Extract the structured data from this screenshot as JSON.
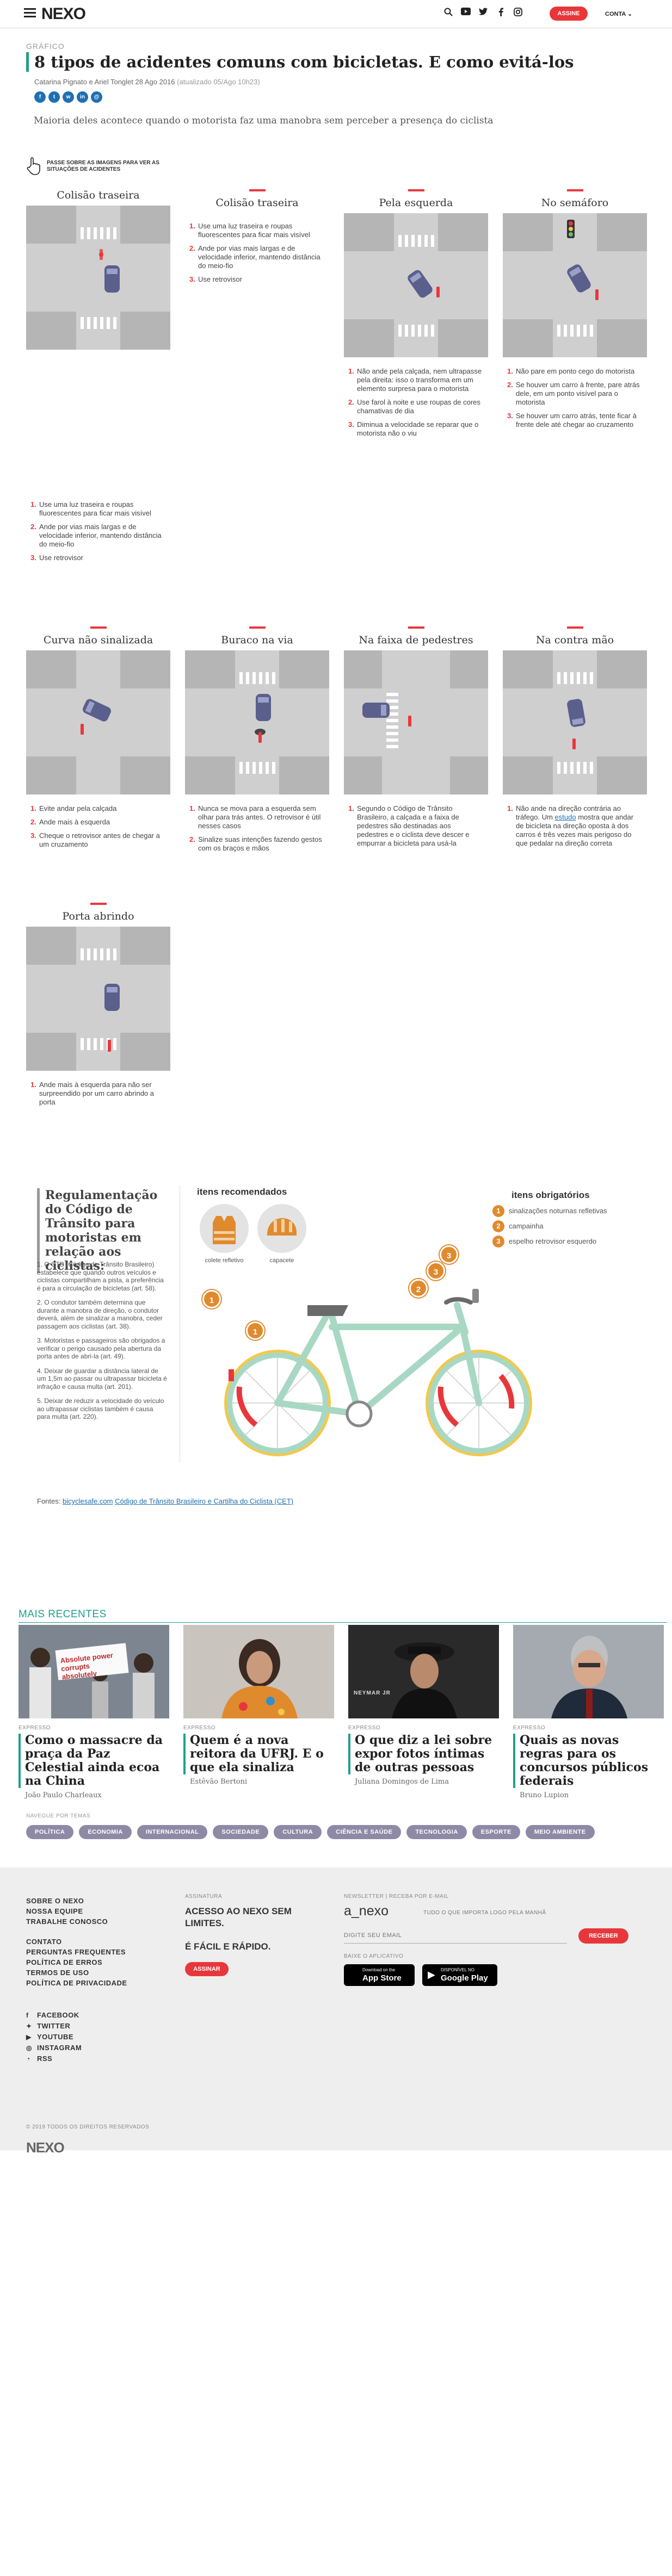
{
  "header": {
    "logo_text": "NEXO",
    "subscribe_label": "ASSINE",
    "account_label": "CONTA",
    "icons": [
      "search-icon",
      "youtube-icon",
      "twitter-icon",
      "facebook-icon",
      "instagram-icon"
    ]
  },
  "article": {
    "kicker": "GRÁFICO",
    "title": "8 tipos de acidentes comuns com bicicletas. E como evitá-los",
    "byline": "Catarina Pignato e Ariel Tonglet 28 Ago 2016",
    "updated": "(atualizado 05/Ago 10h23)",
    "subtitle": "Maioria deles acontece quando o motorista faz uma manobra sem perceber a presença do ciclista",
    "hint": "PASSE SOBRE AS IMAGENS PARA VER AS SITUAÇÕES DE ACIDENTES"
  },
  "cards": [
    {
      "title": "Colisão traseira",
      "tips": []
    },
    {
      "title": "Colisão traseira",
      "tips": [
        "Use uma luz traseira e roupas fluorescentes para ficar mais visível",
        "Ande por vias mais largas e de velocidade inferior, mantendo distância do meio-fio",
        "Use retrovisor"
      ]
    },
    {
      "title": "Pela esquerda",
      "tips": [
        "Não ande pela calçada, nem ultrapasse pela direita: isso o transforma em um elemento surpresa para o motorista",
        "Use farol à noite e use roupas de cores chamativas de dia",
        "Diminua a velocidade se reparar que o motorista não o viu"
      ]
    },
    {
      "title": "No semáforo",
      "tips": [
        "Não pare em ponto cego do motorista",
        "Se houver um carro à frente, pare atrás dele, em um ponto visível para o motorista",
        "Se houver um carro atrás, tente ficar à frente dele até chegar ao cruzamento"
      ]
    },
    {
      "title": "",
      "tips": [
        "Use uma luz traseira e roupas fluorescentes para ficar mais visível",
        "Ande por vias mais largas e de velocidade inferior, mantendo distância do meio-fio",
        "Use retrovisor"
      ]
    },
    {
      "title": "Curva não sinalizada",
      "tips": [
        "Evite andar pela calçada",
        "Ande mais à esquerda",
        "Cheque o retrovisor antes de chegar a um cruzamento"
      ]
    },
    {
      "title": "Buraco na via",
      "tips": [
        "Nunca se mova para a esquerda sem olhar para trás antes. O retrovisor é útil nesses casos",
        "Sinalize suas intenções fazendo gestos com os braços e mãos"
      ]
    },
    {
      "title": "Na faixa de pedestres",
      "tips": [
        "Segundo o Código de Trânsito Brasileiro, a calçada e a faixa de pedestres são destinadas aos pedestres e o ciclista deve descer e empurrar a bicicleta para usá-la"
      ]
    },
    {
      "title": "Na contra mão",
      "tips_html": [
        "Não ande na direção contrária ao tráfego. Um ",
        "estudo",
        " mostra que andar de bicicleta na direção oposta à dos carros é três vezes mais perigoso do que pedalar na direção correta"
      ]
    },
    {
      "title": "Porta abrindo",
      "tips": [
        "Ande mais à esquerda para não ser surpreendido por um carro abrindo a porta"
      ]
    }
  ],
  "regulation": {
    "title": "Regulamentação do Código de Trânsito para motoristas em relação aos ciclistas:",
    "items": [
      "1. O CTB (Código de Trânsito Brasileiro) estabelece que quando outros veículos e ciclistas compartilham a pista, a preferência é para a circulação de bicicletas (art. 58).",
      "2. O condutor também determina que durante a manobra de direção, o condutor deverá, além de sinalizar a manobra, ceder passagem aos ciclistas (art. 38).",
      "3. Motoristas e passageiros são obrigados a verificar o perigo causado pela abertura da porta antes de abri-la (art. 49).",
      "4. Deixar de guardar a distância lateral de um 1,5m ao passar ou ultrapassar bicicleta é infração e causa multa (art. 201).",
      "5. Deixar de reduzir a velocidade do veículo ao ultrapassar ciclistas também é causa para multa (art. 220)."
    ],
    "recommended_title": "itens recomendados",
    "recommended": [
      "colete refletivo",
      "capacete"
    ],
    "mandatory_title": "itens obrigatórios",
    "mandatory": [
      {
        "n": "1",
        "label": "sinalizações noturnas refletivas"
      },
      {
        "n": "2",
        "label": "campainha"
      },
      {
        "n": "3",
        "label": "espelho retrovisor esquerdo"
      }
    ],
    "sources_label": "Fontes: ",
    "sources": [
      "bicyclesafe.com",
      "Código de Trânsito Brasileiro e Cartilha do Ciclista (CET)"
    ]
  },
  "recent": {
    "title": "MAIS RECENTES",
    "items": [
      {
        "section": "EXPRESSO",
        "headline": "Como o massacre da praça da Paz Celestial ainda ecoa na China",
        "author": "João Paulo Charleaux"
      },
      {
        "section": "EXPRESSO",
        "headline": "Quem é a nova reitora da UFRJ. E o que ela sinaliza",
        "author": "Estêvão Bertoni"
      },
      {
        "section": "EXPRESSO",
        "headline": "O que diz a lei sobre expor fotos íntimas de outras pessoas",
        "author": "Juliana Domingos de Lima"
      },
      {
        "section": "EXPRESSO",
        "headline": "Quais as novas regras para os concursos públicos federais",
        "author": "Bruno Lupion"
      }
    ],
    "protest_sign": "Absolute power corrupts absolutely",
    "banner_text": "NEYMAR JR"
  },
  "themes": {
    "label": "NAVEGUE POR TEMAS",
    "items": [
      "POLÍTICA",
      "ECONOMIA",
      "INTERNACIONAL",
      "SOCIEDADE",
      "CULTURA",
      "CIÊNCIA E SAÚDE",
      "TECNOLOGIA",
      "ESPORTE",
      "MEIO AMBIENTE"
    ]
  },
  "footer": {
    "links_a": [
      "SOBRE O NEXO",
      "NOSSA EQUIPE",
      "TRABALHE CONOSCO"
    ],
    "links_b": [
      "CONTATO",
      "PERGUNTAS FREQUENTES",
      "POLÍTICA DE ERROS",
      "TERMOS DE USO",
      "POLÍTICA DE PRIVACIDADE"
    ],
    "social": [
      "FACEBOOK",
      "TWITTER",
      "YOUTUBE",
      "INSTAGRAM",
      "RSS"
    ],
    "subscription_label": "ASSINATURA",
    "subscription_text": "ACESSO AO NEXO SEM LIMITES.",
    "subscription_text2": "É FÁCIL E RÁPIDO.",
    "subscription_button": "ASSINAR",
    "newsletter_label": "NEWSLETTER | RECEBA POR E-MAIL",
    "newsletter_brand": "a_nexo",
    "newsletter_tagline": "TUDO O QUE IMPORTA LOGO PELA MANHÃ",
    "newsletter_placeholder": "DIGITE SEU EMAIL",
    "newsletter_button": "RECEBER",
    "app_label": "BAIXE O APLICATIVO",
    "appstore_small": "Download on the",
    "appstore_big": "App Store",
    "googleplay_small": "DISPONÍVEL NO",
    "googleplay_big": "Google Play",
    "logo": "NEXO",
    "copyright": "© 2019 TODOS OS DIREITOS RESERVADOS"
  },
  "colors": {
    "accent": "#1f9f8c",
    "red": "#e8373b",
    "orange": "#e08a2e",
    "bike": "#a8d8c4"
  }
}
